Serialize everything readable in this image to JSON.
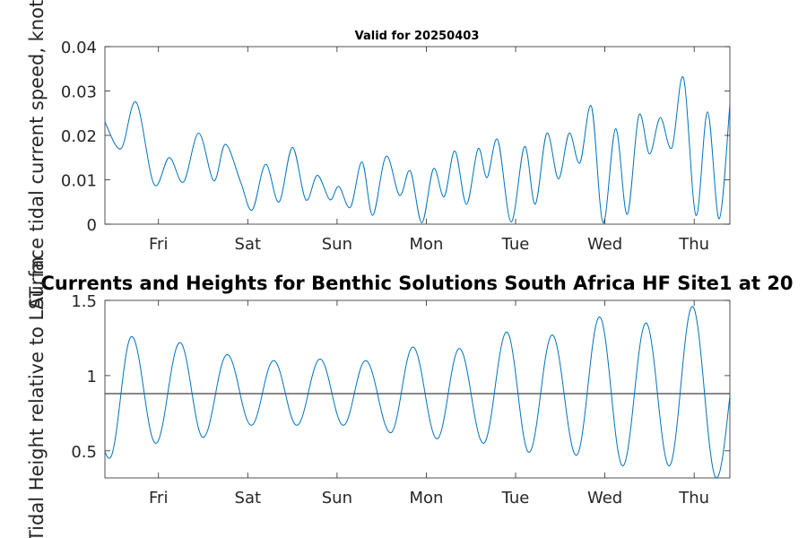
{
  "chart_data": [
    {
      "type": "line",
      "title": "Valid for 20250403",
      "ylabel": "Surface tidal current speed, knots",
      "xlabel": "",
      "xlim": [
        0,
        7
      ],
      "ylim": [
        0,
        0.04
      ],
      "ytick_values": [
        0,
        0.01,
        0.02,
        0.03,
        0.04
      ],
      "ytick_labels": [
        "0",
        "0.01",
        "0.02",
        "0.03",
        "0.04"
      ],
      "xtick_values": [
        0.6,
        1.6,
        2.6,
        3.6,
        4.6,
        5.6,
        6.6
      ],
      "xtick_labels": [
        "Fri",
        "Sat",
        "Sun",
        "Mon",
        "Tue",
        "Wed",
        "Thu"
      ],
      "series": [
        {
          "name": "Surface tidal current speed",
          "color": "#0072BD",
          "points": [
            [
              0,
              0.023
            ],
            [
              0.18,
              0.017
            ],
            [
              0.35,
              0.0275
            ],
            [
              0.55,
              0.009
            ],
            [
              0.72,
              0.015
            ],
            [
              0.88,
              0.0095
            ],
            [
              1.05,
              0.0205
            ],
            [
              1.22,
              0.0098
            ],
            [
              1.35,
              0.018
            ],
            [
              1.52,
              0.0095
            ],
            [
              1.65,
              0.0032
            ],
            [
              1.8,
              0.0135
            ],
            [
              1.95,
              0.005
            ],
            [
              2.1,
              0.0173
            ],
            [
              2.25,
              0.0055
            ],
            [
              2.38,
              0.011
            ],
            [
              2.52,
              0.0055
            ],
            [
              2.62,
              0.0085
            ],
            [
              2.75,
              0.0038
            ],
            [
              2.88,
              0.014
            ],
            [
              3.0,
              0.002
            ],
            [
              3.15,
              0.0153
            ],
            [
              3.3,
              0.0065
            ],
            [
              3.42,
              0.012
            ],
            [
              3.55,
              0.0003
            ],
            [
              3.68,
              0.0125
            ],
            [
              3.8,
              0.0062
            ],
            [
              3.92,
              0.0165
            ],
            [
              4.05,
              0.0045
            ],
            [
              4.18,
              0.017
            ],
            [
              4.28,
              0.0105
            ],
            [
              4.4,
              0.019
            ],
            [
              4.55,
              0.0005
            ],
            [
              4.7,
              0.0175
            ],
            [
              4.82,
              0.0045
            ],
            [
              4.95,
              0.0205
            ],
            [
              5.08,
              0.0102
            ],
            [
              5.2,
              0.0205
            ],
            [
              5.32,
              0.0138
            ],
            [
              5.45,
              0.0265
            ],
            [
              5.58,
              0.0003
            ],
            [
              5.72,
              0.0215
            ],
            [
              5.85,
              0.0022
            ],
            [
              5.98,
              0.0245
            ],
            [
              6.1,
              0.0158
            ],
            [
              6.22,
              0.024
            ],
            [
              6.35,
              0.0172
            ],
            [
              6.48,
              0.033
            ],
            [
              6.62,
              0.002
            ],
            [
              6.75,
              0.0253
            ],
            [
              6.88,
              0.0012
            ],
            [
              7.0,
              0.027
            ]
          ]
        }
      ]
    },
    {
      "type": "line",
      "title": "Currents and Heights for Benthic Solutions South Africa HF Site1 at 20",
      "ylabel": "Tidal Height relative to LAT, m",
      "xlabel": "",
      "xlim": [
        0,
        7
      ],
      "ylim": [
        0.32,
        1.5
      ],
      "ytick_values": [
        0.5,
        1,
        1.5
      ],
      "ytick_labels": [
        "0.5",
        "1",
        "1.5"
      ],
      "xtick_values": [
        0.6,
        1.6,
        2.6,
        3.6,
        4.6,
        5.6,
        6.6
      ],
      "xtick_labels": [
        "Fri",
        "Sat",
        "Sun",
        "Mon",
        "Tue",
        "Wed",
        "Thu"
      ],
      "reference_line": {
        "value": 0.88,
        "color": "#404040"
      },
      "series": [
        {
          "name": "Tidal height",
          "color": "#0072BD",
          "extrema": [
            [
              -0.22,
              1.02
            ],
            [
              0.05,
              0.45
            ],
            [
              0.3,
              1.26
            ],
            [
              0.57,
              0.55
            ],
            [
              0.84,
              1.22
            ],
            [
              1.1,
              0.59
            ],
            [
              1.37,
              1.14
            ],
            [
              1.64,
              0.67
            ],
            [
              1.89,
              1.1
            ],
            [
              2.15,
              0.67
            ],
            [
              2.41,
              1.11
            ],
            [
              2.67,
              0.67
            ],
            [
              2.92,
              1.1
            ],
            [
              3.2,
              0.62
            ],
            [
              3.45,
              1.19
            ],
            [
              3.72,
              0.58
            ],
            [
              3.97,
              1.18
            ],
            [
              4.24,
              0.55
            ],
            [
              4.5,
              1.29
            ],
            [
              4.75,
              0.49
            ],
            [
              5.01,
              1.27
            ],
            [
              5.28,
              0.47
            ],
            [
              5.54,
              1.39
            ],
            [
              5.8,
              0.4
            ],
            [
              6.06,
              1.35
            ],
            [
              6.32,
              0.4
            ],
            [
              6.58,
              1.46
            ],
            [
              6.85,
              0.32
            ],
            [
              7.12,
              1.25
            ]
          ]
        }
      ]
    }
  ]
}
